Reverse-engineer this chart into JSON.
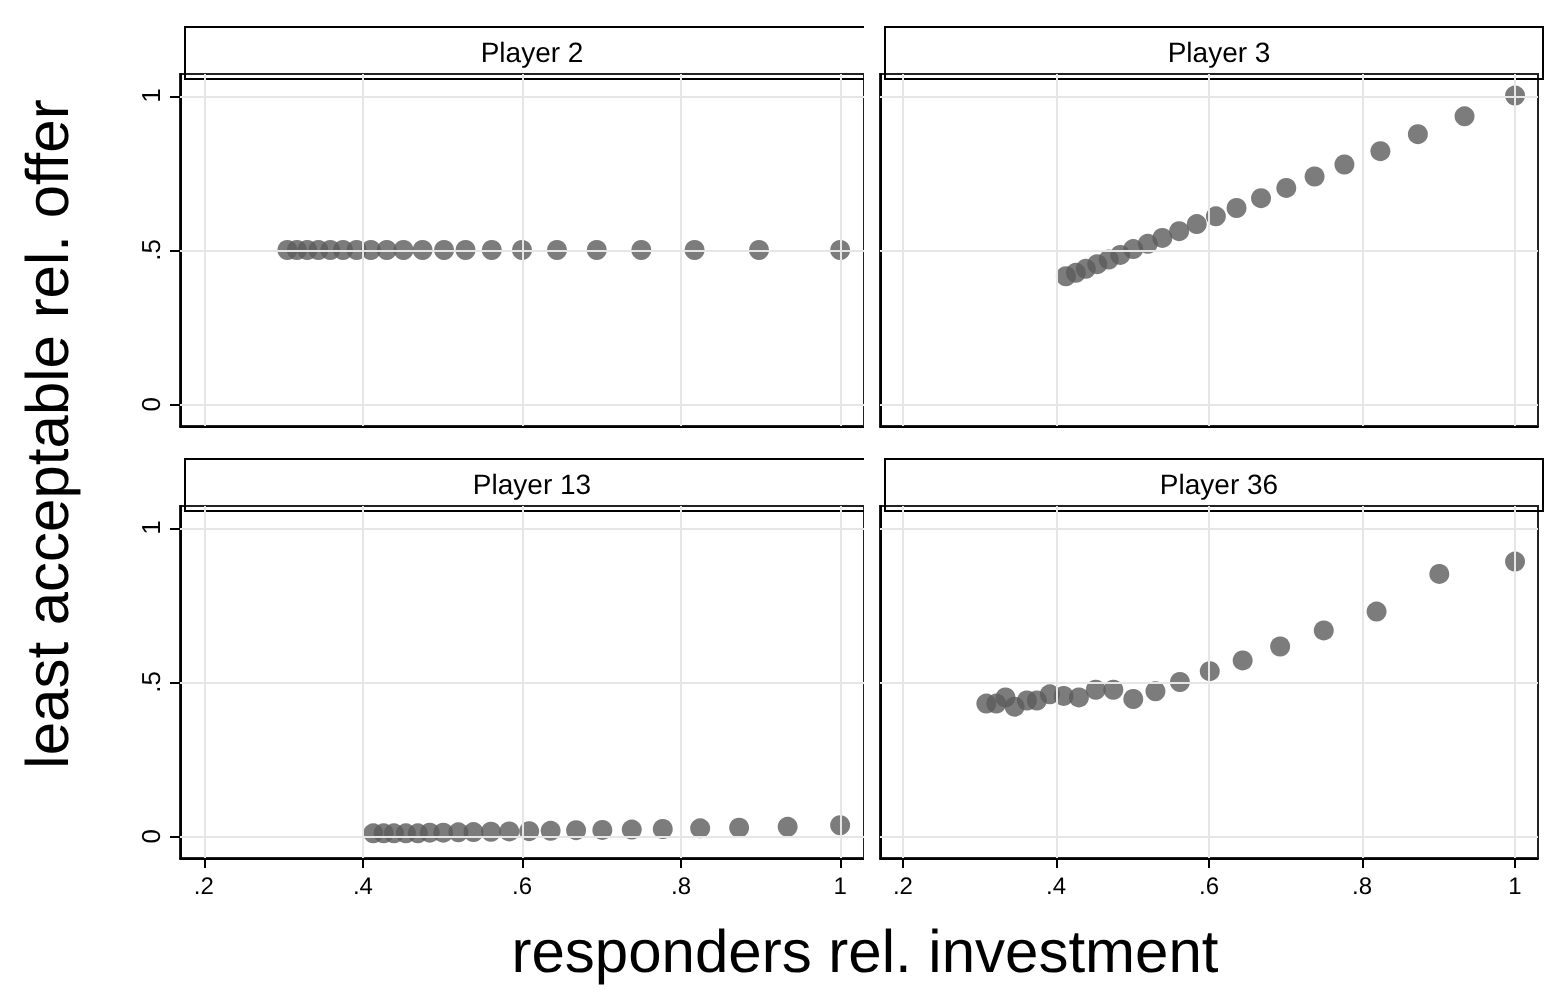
{
  "chart_data": [
    {
      "type": "scatter",
      "title": "Player 2",
      "ylabel": "least acceptable rel. offer",
      "x": [
        0.305,
        0.317,
        0.33,
        0.344,
        0.359,
        0.375,
        0.392,
        0.41,
        0.43,
        0.451,
        0.475,
        0.502,
        0.529,
        0.562,
        0.6,
        0.644,
        0.694,
        0.75,
        0.817,
        0.898,
        1.0
      ],
      "values": [
        0.5,
        0.5,
        0.5,
        0.5,
        0.5,
        0.5,
        0.5,
        0.5,
        0.5,
        0.5,
        0.5,
        0.5,
        0.5,
        0.5,
        0.5,
        0.5,
        0.5,
        0.5,
        0.5,
        0.5,
        0.5
      ],
      "color": "#5b5b5b",
      "marker": "circle",
      "xlim": [
        0.17,
        1.03
      ],
      "ylim": [
        -0.07,
        1.07
      ],
      "xticks": [
        0.2,
        0.4,
        0.6,
        0.8,
        1
      ],
      "yticks": [
        0,
        {
          "value": 0.5,
          "label": ".5"
        },
        1
      ],
      "grid": true,
      "tick_labels": "y"
    },
    {
      "type": "scatter",
      "title": "Player 3",
      "x": [
        0.413,
        0.426,
        0.439,
        0.454,
        0.469,
        0.484,
        0.501,
        0.52,
        0.539,
        0.561,
        0.584,
        0.609,
        0.636,
        0.668,
        0.701,
        0.738,
        0.777,
        0.824,
        0.873,
        0.934,
        1.0
      ],
      "values": [
        0.415,
        0.426,
        0.439,
        0.454,
        0.469,
        0.484,
        0.503,
        0.52,
        0.539,
        0.561,
        0.584,
        0.609,
        0.636,
        0.668,
        0.701,
        0.738,
        0.777,
        0.82,
        0.875,
        0.933,
        1.0
      ],
      "color": "#5b5b5b",
      "marker": "circle",
      "xlim": [
        0.17,
        1.03
      ],
      "ylim": [
        -0.07,
        1.07
      ],
      "xticks": [
        0.2,
        0.4,
        0.6,
        0.8,
        1
      ],
      "yticks": [
        0,
        0.5,
        1
      ],
      "grid": true,
      "tick_labels": false
    },
    {
      "type": "scatter",
      "title": "Player 13",
      "xlabel": "responders rel. investment",
      "x": [
        0.413,
        0.426,
        0.439,
        0.454,
        0.469,
        0.484,
        0.501,
        0.52,
        0.539,
        0.561,
        0.584,
        0.609,
        0.636,
        0.668,
        0.701,
        0.738,
        0.777,
        0.824,
        0.873,
        0.934,
        1.0
      ],
      "values": [
        0.01,
        0.01,
        0.01,
        0.01,
        0.01,
        0.012,
        0.012,
        0.013,
        0.014,
        0.015,
        0.016,
        0.017,
        0.018,
        0.02,
        0.021,
        0.022,
        0.024,
        0.026,
        0.028,
        0.031,
        0.036
      ],
      "color": "#5b5b5b",
      "marker": "circle",
      "xlim": [
        0.17,
        1.03
      ],
      "ylim": [
        -0.07,
        1.07
      ],
      "xticks": [
        {
          "value": 0.2,
          "label": ".2"
        },
        {
          "value": 0.4,
          "label": ".4"
        },
        {
          "value": 0.6,
          "label": ".6"
        },
        {
          "value": 0.8,
          "label": ".8"
        },
        1
      ],
      "yticks": [
        0,
        {
          "value": 0.5,
          "label": ".5"
        },
        1
      ],
      "grid": true
    },
    {
      "type": "scatter",
      "title": "Player 36",
      "x": [
        0.309,
        0.322,
        0.334,
        0.346,
        0.362,
        0.375,
        0.392,
        0.41,
        0.43,
        0.452,
        0.475,
        0.501,
        0.53,
        0.562,
        0.601,
        0.644,
        0.693,
        0.75,
        0.819,
        0.901,
        1.0
      ],
      "values": [
        0.43,
        0.43,
        0.45,
        0.42,
        0.44,
        0.44,
        0.46,
        0.455,
        0.45,
        0.475,
        0.475,
        0.445,
        0.47,
        0.5,
        0.535,
        0.57,
        0.615,
        0.667,
        0.728,
        0.85,
        0.89
      ],
      "color": "#5b5b5b",
      "marker": "circle",
      "xlim": [
        0.17,
        1.03
      ],
      "ylim": [
        -0.07,
        1.07
      ],
      "xticks": [
        {
          "value": 0.2,
          "label": ".2"
        },
        {
          "value": 0.4,
          "label": ".4"
        },
        {
          "value": 0.6,
          "label": ".6"
        },
        {
          "value": 0.8,
          "label": ".8"
        },
        1
      ],
      "yticks": [
        0,
        0.5,
        1
      ],
      "grid": true,
      "tick_labels": "x"
    }
  ]
}
